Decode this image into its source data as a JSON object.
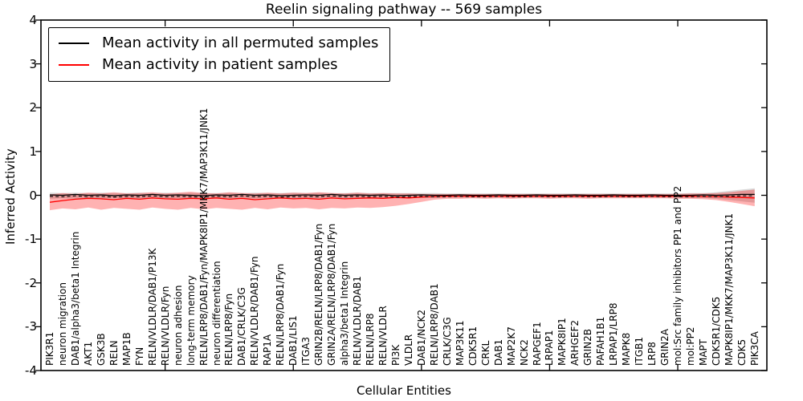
{
  "chart_data": {
    "type": "line",
    "title": "Reelin signaling pathway -- 569 samples",
    "xlabel": "Cellular Entities",
    "ylabel": "Inferred Activity",
    "ylim": [
      -4,
      4
    ],
    "yticks": [
      4,
      3,
      2,
      1,
      0,
      -1,
      -2,
      -3,
      -4
    ],
    "grid": false,
    "legend_position": "upper left",
    "categories": [
      "PIK3R1",
      "neuron migration",
      "DAB1/alpha3/beta1 Integrin",
      "AKT1",
      "GSK3B",
      "RELN",
      "MAP1B",
      "FYN",
      "RELN/VLDLR/DAB1/P13K",
      "RELN/VLDLR/Fyn",
      "neuron adhesion",
      "long-term memory",
      "RELN/LRP8/DAB1/Fyn/MAPK8IP1/MKK7/MAP3K11/JNK1",
      "neuron differentiation",
      "RELN/LRP8/Fyn",
      "DAB1/CRLK/C3G",
      "RELN/VLDLR/DAB1/Fyn",
      "RAP1A",
      "RELN/LRP8/DAB1/Fyn",
      "DAB1/LIS1",
      "ITGA3",
      "GRIN2B/RELN/LRP8/DAB1/Fyn",
      "GRIN2A/RELN/LRP8/DAB1/Fyn",
      "alpha3/beta1 Integrin",
      "RELN/VLDLR/DAB1",
      "RELN/LRP8",
      "RELN/VLDLR",
      "PI3K",
      "VLDLR",
      "DAB1/NCK2",
      "RELN/LRP8/DAB1",
      "CRLK/C3G",
      "MAP3K11",
      "CDK5R1",
      "CRKL",
      "DAB1",
      "MAP2K7",
      "NCK2",
      "RAPGEF1",
      "LRPAP1",
      "MAPK8IP1",
      "ARHGEF2",
      "GRIN2B",
      "PAFAH1B1",
      "LRPAP1/LRP8",
      "MAPK8",
      "ITGB1",
      "LRP8",
      "GRIN2A",
      "mol:Src family inhibitors PP1 and PP2",
      "mol:PP2",
      "MAPT",
      "CDK5R1/CDK5",
      "MAPK8IP1/MKK7/MAP3K11/JNK1",
      "CDK5",
      "PIK3CA"
    ],
    "series": [
      {
        "name": "Mean activity in all permuted samples",
        "color": "#000000",
        "values": [
          0.01,
          0.0,
          0.02,
          0.0,
          0.01,
          -0.01,
          0.01,
          0.0,
          0.02,
          0.0,
          0.01,
          0.0,
          -0.01,
          0.01,
          0.0,
          0.02,
          0.0,
          0.01,
          -0.01,
          0.0,
          0.01,
          0.0,
          0.02,
          0.0,
          0.01,
          0.0,
          0.01,
          -0.01,
          0.0,
          0.01,
          0.0,
          0.0,
          0.01,
          0.0,
          0.0,
          0.01,
          0.0,
          0.0,
          0.01,
          0.0,
          0.0,
          0.01,
          0.0,
          0.0,
          0.01,
          0.0,
          0.0,
          0.01,
          0.0,
          0.0,
          0.0,
          0.01,
          0.0,
          0.01,
          0.02,
          0.02
        ]
      },
      {
        "name": "Mean activity in patient samples",
        "color": "#ff0000",
        "values": [
          -0.16,
          -0.12,
          -0.09,
          -0.07,
          -0.08,
          -0.1,
          -0.07,
          -0.09,
          -0.06,
          -0.08,
          -0.09,
          -0.07,
          -0.08,
          -0.06,
          -0.09,
          -0.07,
          -0.1,
          -0.08,
          -0.06,
          -0.08,
          -0.07,
          -0.09,
          -0.06,
          -0.08,
          -0.07,
          -0.06,
          -0.07,
          -0.05,
          -0.06,
          -0.04,
          -0.03,
          -0.02,
          -0.02,
          -0.02,
          -0.02,
          -0.02,
          -0.02,
          -0.02,
          -0.02,
          -0.02,
          -0.02,
          -0.02,
          -0.02,
          -0.02,
          -0.02,
          -0.02,
          -0.02,
          -0.02,
          -0.02,
          -0.02,
          -0.02,
          -0.03,
          -0.03,
          -0.04,
          -0.05,
          -0.06
        ]
      }
    ],
    "bands": [
      {
        "name": "permuted samples band",
        "color": "rgba(130,130,130,0.30)",
        "upper": [
          0.06,
          0.05,
          0.06,
          0.05,
          0.06,
          0.05,
          0.05,
          0.06,
          0.05,
          0.06,
          0.05,
          0.06,
          0.05,
          0.05,
          0.06,
          0.05,
          0.06,
          0.05,
          0.05,
          0.06,
          0.05,
          0.06,
          0.05,
          0.05,
          0.06,
          0.05,
          0.05,
          0.05,
          0.05,
          0.05,
          0.05,
          0.04,
          0.04,
          0.04,
          0.04,
          0.04,
          0.04,
          0.04,
          0.04,
          0.04,
          0.04,
          0.04,
          0.04,
          0.04,
          0.04,
          0.04,
          0.04,
          0.04,
          0.04,
          0.04,
          0.05,
          0.05,
          0.07,
          0.1,
          0.13,
          0.16
        ],
        "lower": [
          -0.08,
          -0.07,
          -0.08,
          -0.07,
          -0.08,
          -0.07,
          -0.07,
          -0.08,
          -0.07,
          -0.08,
          -0.07,
          -0.08,
          -0.07,
          -0.07,
          -0.08,
          -0.07,
          -0.08,
          -0.07,
          -0.07,
          -0.08,
          -0.07,
          -0.08,
          -0.07,
          -0.07,
          -0.08,
          -0.07,
          -0.07,
          -0.07,
          -0.07,
          -0.06,
          -0.06,
          -0.05,
          -0.05,
          -0.05,
          -0.05,
          -0.05,
          -0.05,
          -0.05,
          -0.05,
          -0.05,
          -0.05,
          -0.05,
          -0.05,
          -0.05,
          -0.05,
          -0.05,
          -0.05,
          -0.05,
          -0.05,
          -0.05,
          -0.06,
          -0.06,
          -0.08,
          -0.11,
          -0.14,
          -0.17
        ]
      },
      {
        "name": "patient samples band",
        "color": "rgba(255,0,0,0.30)",
        "upper": [
          0.02,
          0.05,
          0.03,
          0.06,
          0.04,
          0.07,
          0.04,
          0.05,
          0.07,
          0.04,
          0.06,
          0.08,
          0.05,
          0.04,
          0.07,
          0.05,
          0.04,
          0.06,
          0.04,
          0.06,
          0.05,
          0.07,
          0.05,
          0.04,
          0.06,
          0.04,
          0.05,
          0.04,
          0.04,
          0.03,
          0.03,
          0.03,
          0.03,
          0.03,
          0.03,
          0.03,
          0.03,
          0.03,
          0.03,
          0.03,
          0.03,
          0.03,
          0.03,
          0.03,
          0.03,
          0.03,
          0.03,
          0.03,
          0.03,
          0.03,
          0.04,
          0.04,
          0.05,
          0.07,
          0.1,
          0.13
        ],
        "lower": [
          -0.34,
          -0.3,
          -0.32,
          -0.28,
          -0.33,
          -0.29,
          -0.31,
          -0.33,
          -0.28,
          -0.31,
          -0.33,
          -0.29,
          -0.32,
          -0.29,
          -0.31,
          -0.33,
          -0.29,
          -0.32,
          -0.28,
          -0.3,
          -0.29,
          -0.32,
          -0.29,
          -0.3,
          -0.28,
          -0.29,
          -0.27,
          -0.24,
          -0.2,
          -0.15,
          -0.1,
          -0.08,
          -0.08,
          -0.07,
          -0.08,
          -0.07,
          -0.08,
          -0.07,
          -0.07,
          -0.08,
          -0.07,
          -0.07,
          -0.08,
          -0.07,
          -0.07,
          -0.07,
          -0.07,
          -0.07,
          -0.07,
          -0.08,
          -0.08,
          -0.09,
          -0.11,
          -0.15,
          -0.2,
          -0.25
        ]
      }
    ]
  }
}
